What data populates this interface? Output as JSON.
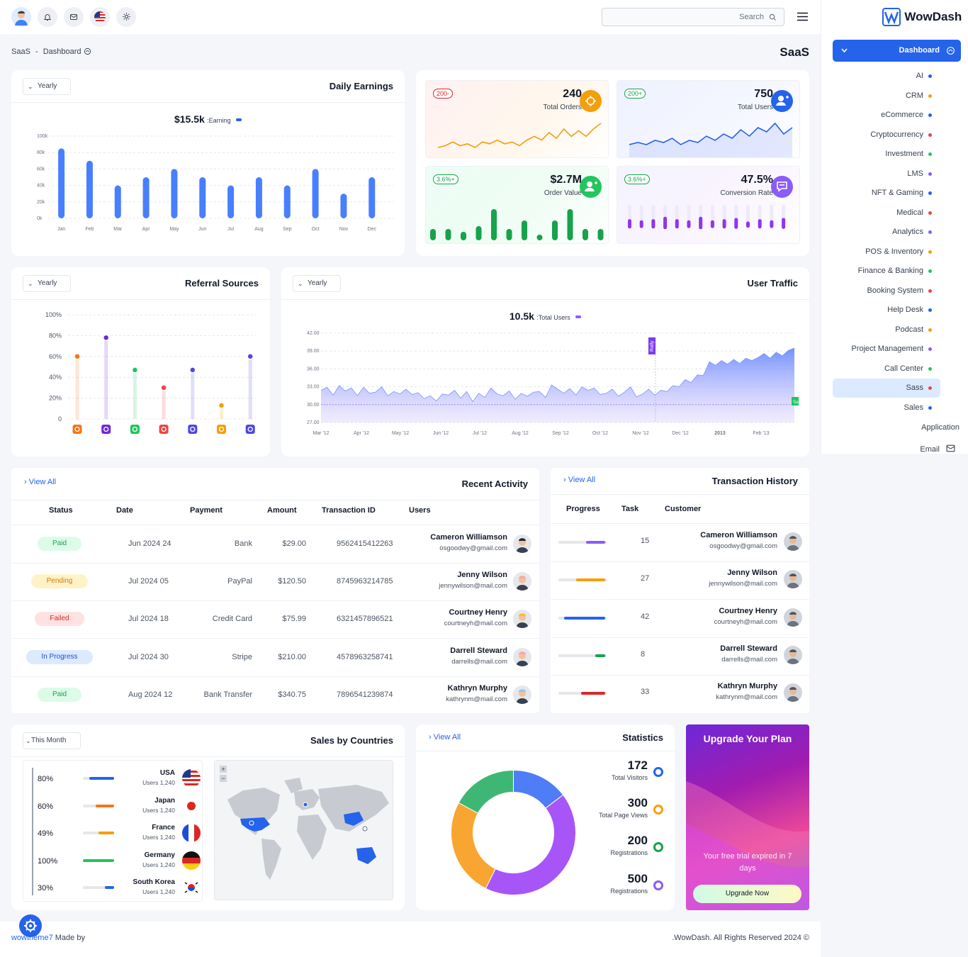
{
  "topbar": {
    "search_placeholder": "Search",
    "icons": [
      "avatar",
      "bell-icon",
      "mail-icon",
      "us-flag-icon",
      "sun-icon",
      "menu-icon"
    ]
  },
  "breadcrumb": {
    "root": "SaaS",
    "sep": "-",
    "current": "Dashboard"
  },
  "page_title": "SaaS",
  "sidebar": {
    "brand": "WowDash",
    "active": "Dashboard",
    "items": [
      {
        "label": "AI",
        "color": "#2563eb"
      },
      {
        "label": "CRM",
        "color": "#f59e0b"
      },
      {
        "label": "eCommerce",
        "color": "#2563eb"
      },
      {
        "label": "Cryptocurrency",
        "color": "#ef4444"
      },
      {
        "label": "Investment",
        "color": "#22c55e"
      },
      {
        "label": "LMS",
        "color": "#8b5cf6"
      },
      {
        "label": "NFT & Gaming",
        "color": "#2563eb"
      },
      {
        "label": "Medical",
        "color": "#ef4444"
      },
      {
        "label": "Analytics",
        "color": "#8b5cf6"
      },
      {
        "label": "POS & Inventory",
        "color": "#f59e0b"
      },
      {
        "label": "Finance & Banking",
        "color": "#22c55e"
      },
      {
        "label": "Booking System",
        "color": "#ef4444"
      },
      {
        "label": "Help Desk",
        "color": "#2563eb"
      },
      {
        "label": "Podcast",
        "color": "#f59e0b"
      },
      {
        "label": "Project Management",
        "color": "#8b5cf6"
      },
      {
        "label": "Call Center",
        "color": "#22c55e"
      },
      {
        "label": "Sass",
        "color": "#ef4444"
      },
      {
        "label": "Sales",
        "color": "#2563eb"
      }
    ],
    "section_application": "Application",
    "email": "Email"
  },
  "daily_earnings": {
    "title": "Daily Earnings",
    "filter": "Yearly",
    "amount": "$15.5k",
    "amount_label": ":Earning"
  },
  "kpis": [
    {
      "badge": "200-",
      "value": "240",
      "label": "Total Orders",
      "color": "#f59e0b"
    },
    {
      "badge": "200+",
      "value": "750",
      "label": "Total Users",
      "color": "#2563eb"
    },
    {
      "badge": "3.6%+",
      "value": "$2.7M",
      "label": "Order Value",
      "color": "#22c55e"
    },
    {
      "badge": "3.6%+",
      "value": "47.5%",
      "label": "Conversion Rate",
      "color": "#8b5cf6"
    }
  ],
  "referral": {
    "title": "Referral Sources",
    "filter": "Yearly"
  },
  "traffic": {
    "title": "User Traffic",
    "filter": "Yearly",
    "amount": "10.5k",
    "amount_label": ":Total Users",
    "marker_label": "Rally",
    "end_label": "Sa"
  },
  "chart_data": [
    {
      "type": "bar",
      "categories": [
        "Jan",
        "Feb",
        "Mar",
        "Apr",
        "May",
        "Jun",
        "Jul",
        "Aug",
        "Sep",
        "Oct",
        "Nov",
        "Dec"
      ],
      "values": [
        85,
        70,
        40,
        50,
        60,
        50,
        40,
        50,
        40,
        60,
        30,
        50
      ],
      "yticks": [
        "0k",
        "20k",
        "40k",
        "60k",
        "80k",
        "100k"
      ],
      "ylim": [
        0,
        100
      ]
    },
    {
      "type": "scatter",
      "title": "Referral Sources",
      "categories": [
        "mail",
        "dribbble",
        "whatsapp",
        "google",
        "linkedin",
        "instagram",
        "facebook"
      ],
      "values": [
        60,
        78,
        47,
        30,
        47,
        13,
        60
      ],
      "colors": [
        "#f97316",
        "#6d28d9",
        "#22c55e",
        "#ef4444",
        "#4f46e5",
        "#f59e0b",
        "#4f46e5"
      ],
      "yticks": [
        "0",
        "20%",
        "40%",
        "60%",
        "80%",
        "100%"
      ],
      "ylim": [
        0,
        100
      ]
    },
    {
      "type": "area",
      "title": "User Traffic",
      "xticks": [
        "Mar '12",
        "Apr '12",
        "May '12",
        "Jun '12",
        "Jul '12",
        "Aug '12",
        "Sep '12",
        "Oct '12",
        "Nov '12",
        "Dec '12",
        "2013",
        "Feb '13"
      ],
      "yticks": [
        "27.00",
        "30.00",
        "33.00",
        "36.00",
        "39.00",
        "42.00"
      ],
      "ylim": [
        27,
        42
      ],
      "values": [
        32.4,
        32.9,
        31.6,
        33.2,
        32.3,
        32.8,
        31.5,
        32.9,
        31.9,
        32.1,
        33.0,
        31.5,
        32.2,
        31.8,
        32.6,
        31.7,
        32.0,
        31.0,
        31.5,
        30.6,
        31.8,
        31.6,
        32.4,
        31.1,
        32.2,
        30.5,
        31.9,
        31.2,
        32.8,
        31.8,
        31.5,
        32.3,
        30.9,
        31.9,
        31.4,
        32.1,
        32.2,
        31.2,
        33.3,
        32.6,
        31.9,
        32.7,
        31.6,
        33.0,
        32.4,
        32.8,
        31.7,
        31.9,
        32.6,
        31.4,
        32.1,
        33.0,
        31.3,
        31.8,
        32.6,
        31.6,
        32.4,
        32.2,
        33.2,
        33.0,
        34.2,
        33.7,
        35.0,
        34.9,
        37.2,
        36.6,
        37.4,
        36.8,
        37.6,
        36.9,
        37.8,
        37.4,
        37.9,
        38.6,
        37.8,
        38.8,
        38.2,
        39.1,
        39.5
      ]
    },
    {
      "type": "pie",
      "title": "Statistics",
      "values": [
        172,
        300,
        200,
        500
      ],
      "labels": [
        "Total Visitors",
        "Total Page Views",
        "Registrations",
        "Registrations"
      ],
      "colors": [
        "#4f7cf7",
        "#f9a531",
        "#3fb774",
        "#a855f7"
      ]
    }
  ],
  "kpi_sparks": {
    "orders": [
      3,
      4,
      6,
      4,
      5,
      3,
      6,
      5,
      7,
      5,
      6,
      4,
      7,
      9,
      7,
      11,
      8,
      13,
      9,
      12,
      9,
      13,
      16
    ],
    "users": [
      4,
      5,
      4,
      6,
      5,
      7,
      4,
      6,
      5,
      8,
      6,
      9,
      7,
      11,
      8,
      12,
      10,
      14,
      9,
      12
    ],
    "order_value": [
      4,
      4,
      3,
      5,
      11,
      4,
      7,
      2,
      7,
      11,
      4,
      4
    ],
    "conversion": [
      6,
      5,
      6,
      8,
      6,
      5,
      8,
      5,
      6,
      7,
      4,
      6,
      5,
      7
    ]
  },
  "recent_activity": {
    "title": "Recent Activity",
    "view_all": "View All",
    "headers": [
      "Status",
      "Date",
      "Payment",
      "Amount",
      "Transaction ID",
      "Users"
    ],
    "rows": [
      {
        "status": "Paid",
        "date": "Jun 2024 24",
        "payment": "Bank",
        "amount": "$29.00",
        "txn": "9562415412263",
        "name": "Cameron Williamson",
        "email": "osgoodwy@gmail.com"
      },
      {
        "status": "Pending",
        "date": "Jul 2024 05",
        "payment": "PayPal",
        "amount": "$120.50",
        "txn": "8745963214785",
        "name": "Jenny Wilson",
        "email": "jennywilson@mail.com"
      },
      {
        "status": "Failed",
        "date": "Jul 2024 18",
        "payment": "Credit Card",
        "amount": "$75.99",
        "txn": "6321457896521",
        "name": "Courtney Henry",
        "email": "courtneyh@mail.com"
      },
      {
        "status": "In Progress",
        "date": "Jul 2024 30",
        "payment": "Stripe",
        "amount": "$210.00",
        "txn": "4578963258741",
        "name": "Darrell Steward",
        "email": "darrells@mail.com"
      },
      {
        "status": "Paid",
        "date": "Aug 2024 12",
        "payment": "Bank Transfer",
        "amount": "$340.75",
        "txn": "7896541239874",
        "name": "Kathryn Murphy",
        "email": "kathrynm@mail.com"
      }
    ]
  },
  "transactions": {
    "title": "Transaction History",
    "view_all": "View All",
    "headers": [
      "Progress",
      "Task",
      "Customer"
    ],
    "rows": [
      {
        "progress": 40,
        "color": "#8b5cf6",
        "task": "15",
        "name": "Cameron Williamson",
        "email": "osgoodwy@gmail.com"
      },
      {
        "progress": 60,
        "color": "#f59e0b",
        "task": "27",
        "name": "Jenny Wilson",
        "email": "jennywilson@mail.com"
      },
      {
        "progress": 85,
        "color": "#2563eb",
        "task": "42",
        "name": "Courtney Henry",
        "email": "courtneyh@mail.com"
      },
      {
        "progress": 20,
        "color": "#16a34a",
        "task": "8",
        "name": "Darrell Steward",
        "email": "darrells@mail.com"
      },
      {
        "progress": 50,
        "color": "#dc2626",
        "task": "33",
        "name": "Kathryn Murphy",
        "email": "kathrynm@mail.com"
      }
    ]
  },
  "sales_countries": {
    "title": "Sales by Countries",
    "filter": "This Month",
    "rows": [
      {
        "pct": "80%",
        "value": 80,
        "color": "#2563eb",
        "country": "USA",
        "users": "Users 1,240"
      },
      {
        "pct": "60%",
        "value": 60,
        "color": "#f97316",
        "country": "Japan",
        "users": "Users 1,240"
      },
      {
        "pct": "49%",
        "value": 49,
        "color": "#f59e0b",
        "country": "France",
        "users": "Users 1,240"
      },
      {
        "pct": "100%",
        "value": 100,
        "color": "#22c55e",
        "country": "Germany",
        "users": "Users 1,240"
      },
      {
        "pct": "30%",
        "value": 30,
        "color": "#2563eb",
        "country": "South Korea",
        "users": "Users 1,240"
      }
    ],
    "zoom_in": "+",
    "zoom_out": "−"
  },
  "statistics": {
    "title": "Statistics",
    "view_all": "View All",
    "items": [
      {
        "value": "172",
        "label": "Total Visitors",
        "color": "#2563eb"
      },
      {
        "value": "300",
        "label": "Total Page Views",
        "color": "#f59e0b"
      },
      {
        "value": "200",
        "label": "Registrations",
        "color": "#16a34a"
      },
      {
        "value": "500",
        "label": "Registrations",
        "color": "#8b5cf6"
      }
    ]
  },
  "upgrade": {
    "title": "Upgrade Your Plan",
    "text": "Your free trial expired in 7 days",
    "button": "Upgrade Now"
  },
  "footer": {
    "left_link": "wowtheme7",
    "left_text": "Made by",
    "right": ".WowDash. All Rights Reserved 2024 ©"
  }
}
